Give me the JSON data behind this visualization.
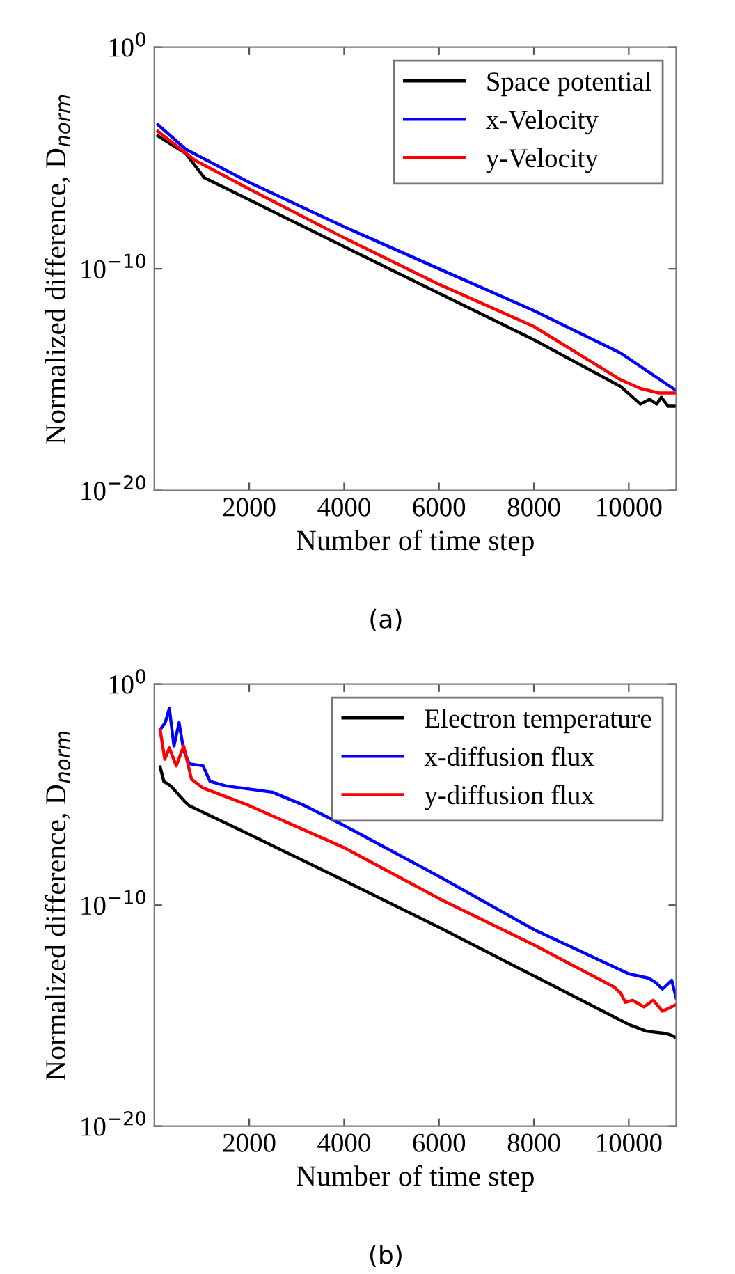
{
  "chart_data": [
    {
      "type": "line",
      "xlabel": "Number of time step",
      "ylabel": "Normalized difference, D$_{norm}$",
      "log": "y",
      "xlim": [
        0,
        11000
      ],
      "xticks": [
        2000,
        4000,
        6000,
        8000,
        10000
      ],
      "ylim": [
        1e-20,
        1
      ],
      "yticks": [
        {
          "value": 1,
          "label": "10$^{0}$"
        },
        {
          "value": 1e-10,
          "label": "10$^{−10}$"
        },
        {
          "value": 1e-20,
          "label": "10$^{−20}$"
        }
      ],
      "legend": "top right",
      "annotations": [
        "(a)"
      ],
      "series": [
        {
          "name": "Space potential",
          "color": "#000000",
          "x": [
            73,
            660,
            1051,
            2000,
            4000,
            6000,
            8000,
            9824,
            10244,
            10440,
            10587,
            10685,
            10831,
            11000
          ],
          "values": [
            0.0001,
            1.6e-05,
            1.3e-06,
            1.3e-07,
            1e-09,
            7.9e-12,
            6.3e-14,
            5e-16,
            7.9e-17,
            1.3e-16,
            7.9e-17,
            1.6e-16,
            6.3e-17,
            6.3e-17
          ]
        },
        {
          "name": "x-Velocity",
          "color": "#0000ff",
          "x": [
            73,
            660,
            2000,
            4000,
            6000,
            8000,
            9824,
            11000
          ],
          "values": [
            0.00032,
            2.5e-05,
            7.9e-07,
            7.9e-09,
            1e-10,
            1.3e-12,
            1.6e-14,
            3.2e-16
          ]
        },
        {
          "name": "y-Velocity",
          "color": "#ff0000",
          "x": [
            73,
            856,
            2000,
            4000,
            6000,
            8000,
            9824,
            10244,
            10636,
            11000
          ],
          "values": [
            0.00016,
            7.9e-06,
            4e-07,
            2.5e-09,
            2e-11,
            2.5e-13,
            1e-15,
            4e-16,
            2.5e-16,
            2.5e-16
          ]
        }
      ]
    },
    {
      "type": "line",
      "xlabel": "Number of time step",
      "ylabel": "Normalized difference, D$_{norm}$",
      "log": "y",
      "xlim": [
        0,
        11000
      ],
      "xticks": [
        2000,
        4000,
        6000,
        8000,
        10000
      ],
      "ylim": [
        1e-20,
        1
      ],
      "yticks": [
        {
          "value": 1,
          "label": "10$^{0}$"
        },
        {
          "value": 1e-10,
          "label": "10$^{−10}$"
        },
        {
          "value": 1e-20,
          "label": "10$^{−20}$"
        }
      ],
      "legend": "top right",
      "annotations": [
        "(b)"
      ],
      "series": [
        {
          "name": "Electron temperature",
          "color": "#000000",
          "x": [
            122,
            200,
            345,
            637,
            735,
            2000,
            4000,
            6000,
            8000,
            10000,
            10370,
            10760,
            10905,
            11000
          ],
          "values": [
            0.00018,
            4e-05,
            2.5e-05,
            5e-06,
            3.2e-06,
            1.6e-07,
            1.3e-09,
            1e-11,
            6.3e-14,
            4e-16,
            2e-16,
            1.6e-16,
            1.3e-16,
            1e-16
          ]
        },
        {
          "name": "x-diffusion flux",
          "color": "#0000ff",
          "x": [
            122,
            229,
            316,
            414,
            521,
            618,
            735,
            1027,
            1173,
            1513,
            2487,
            3168,
            4000,
            6000,
            8000,
            10000,
            10418,
            10564,
            10710,
            10905,
            11000
          ],
          "values": [
            0.0087,
            0.018,
            0.079,
            0.0016,
            0.018,
            0.001,
            0.00025,
            0.0002,
            4e-05,
            2.5e-05,
            1.3e-05,
            3.2e-06,
            4e-07,
            2e-09,
            7.9e-12,
            7.9e-14,
            5e-14,
            3.2e-14,
            1.6e-14,
            4e-14,
            6.3e-15
          ]
        },
        {
          "name": "y-diffusion flux",
          "color": "#ff0000",
          "x": [
            122,
            220,
            316,
            462,
            618,
            783,
            1027,
            2000,
            4000,
            6000,
            8000,
            9689,
            9835,
            9932,
            10078,
            10321,
            10516,
            10710,
            11000
          ],
          "values": [
            0.0087,
            0.0004,
            0.0013,
            0.0002,
            0.0016,
            5e-05,
            2e-05,
            3.2e-06,
            4e-08,
            2e-10,
            1.6e-12,
            2e-14,
            1e-14,
            4e-15,
            5e-15,
            2.5e-15,
            5e-15,
            1.6e-15,
            3.2e-15
          ]
        }
      ]
    }
  ]
}
